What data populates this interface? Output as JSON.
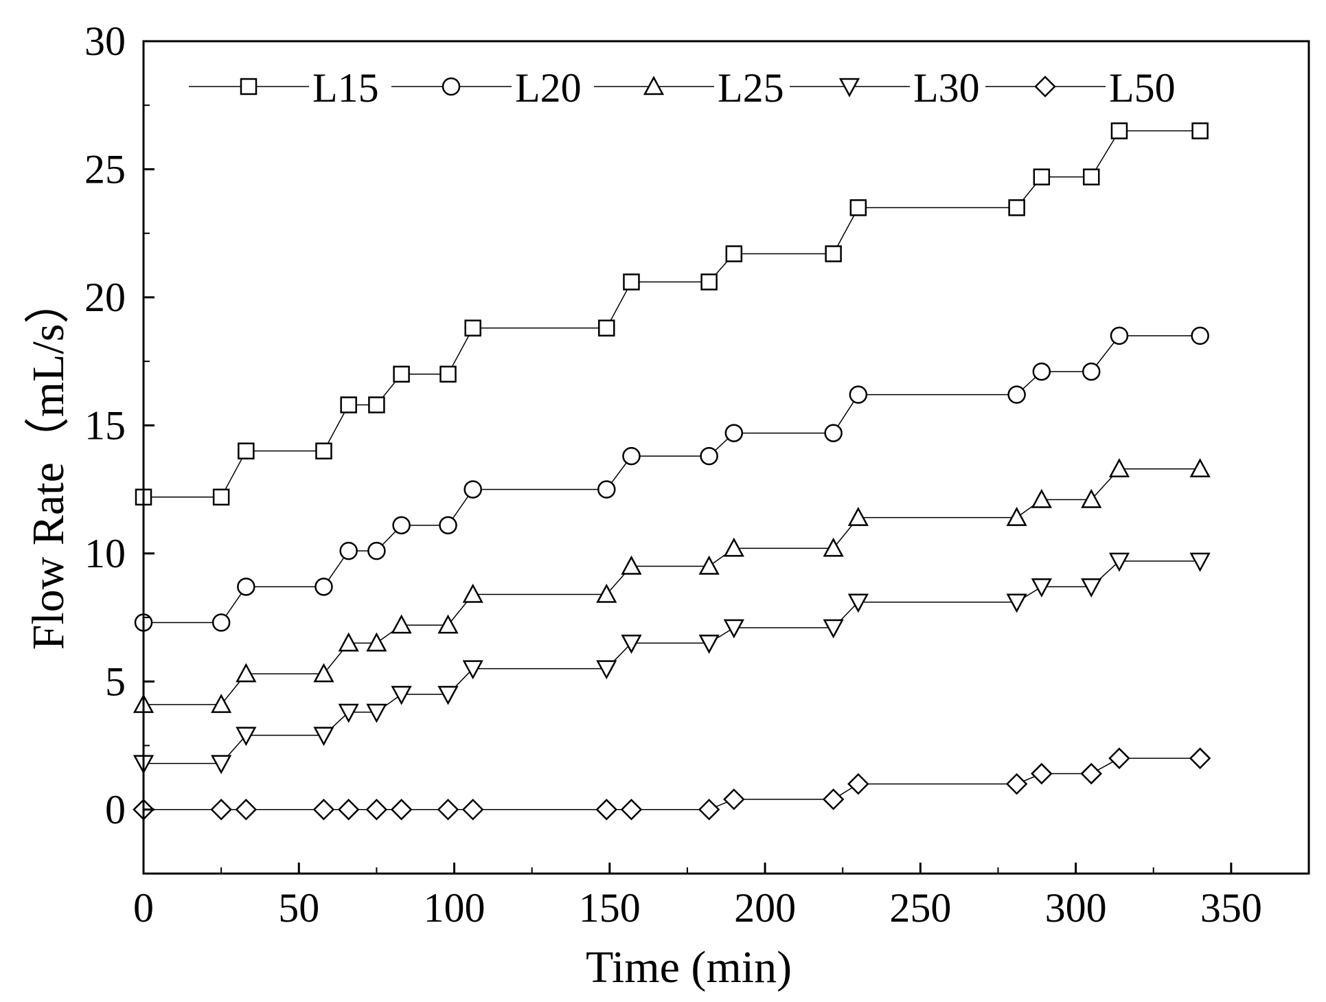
{
  "chart_data": {
    "type": "line",
    "xlabel": "Time (min)",
    "ylabel": "Flow Rate（mL/s）",
    "xlim": [
      0,
      375
    ],
    "ylim": [
      -2.5,
      30
    ],
    "xticks": [
      0,
      50,
      100,
      150,
      200,
      250,
      300,
      350
    ],
    "yticks": [
      0,
      5,
      10,
      15,
      20,
      25,
      30
    ],
    "grid": false,
    "legend_position": "top",
    "x": [
      0,
      25,
      33,
      58,
      66,
      75,
      83,
      98,
      106,
      149,
      157,
      182,
      190,
      222,
      230,
      281,
      289,
      305,
      314,
      340
    ],
    "series": [
      {
        "name": "L15",
        "marker": "square",
        "values": [
          12.2,
          12.2,
          14.0,
          14.0,
          15.8,
          15.8,
          17.0,
          17.0,
          18.8,
          18.8,
          20.6,
          20.6,
          21.7,
          21.7,
          23.5,
          23.5,
          24.7,
          24.7,
          26.5,
          26.5
        ]
      },
      {
        "name": "L20",
        "marker": "circle",
        "values": [
          7.3,
          7.3,
          8.7,
          8.7,
          10.1,
          10.1,
          11.1,
          11.1,
          12.5,
          12.5,
          13.8,
          13.8,
          14.7,
          14.7,
          16.2,
          16.2,
          17.1,
          17.1,
          18.5,
          18.5
        ]
      },
      {
        "name": "L25",
        "marker": "triangle-up",
        "values": [
          4.1,
          4.1,
          5.3,
          5.3,
          6.5,
          6.5,
          7.2,
          7.2,
          8.4,
          8.4,
          9.5,
          9.5,
          10.2,
          10.2,
          11.4,
          11.4,
          12.1,
          12.1,
          13.3,
          13.3
        ]
      },
      {
        "name": "L30",
        "marker": "triangle-down",
        "values": [
          1.8,
          1.8,
          2.9,
          2.9,
          3.8,
          3.8,
          4.5,
          4.5,
          5.5,
          5.5,
          6.5,
          6.5,
          7.1,
          7.1,
          8.1,
          8.1,
          8.7,
          8.7,
          9.7,
          9.7
        ]
      },
      {
        "name": "L50",
        "marker": "diamond",
        "values": [
          0,
          0,
          0,
          0,
          0,
          0,
          0,
          0,
          0,
          0,
          0,
          0,
          0.4,
          0.4,
          1.0,
          1.0,
          1.4,
          1.4,
          2.0,
          2.0
        ]
      }
    ]
  }
}
